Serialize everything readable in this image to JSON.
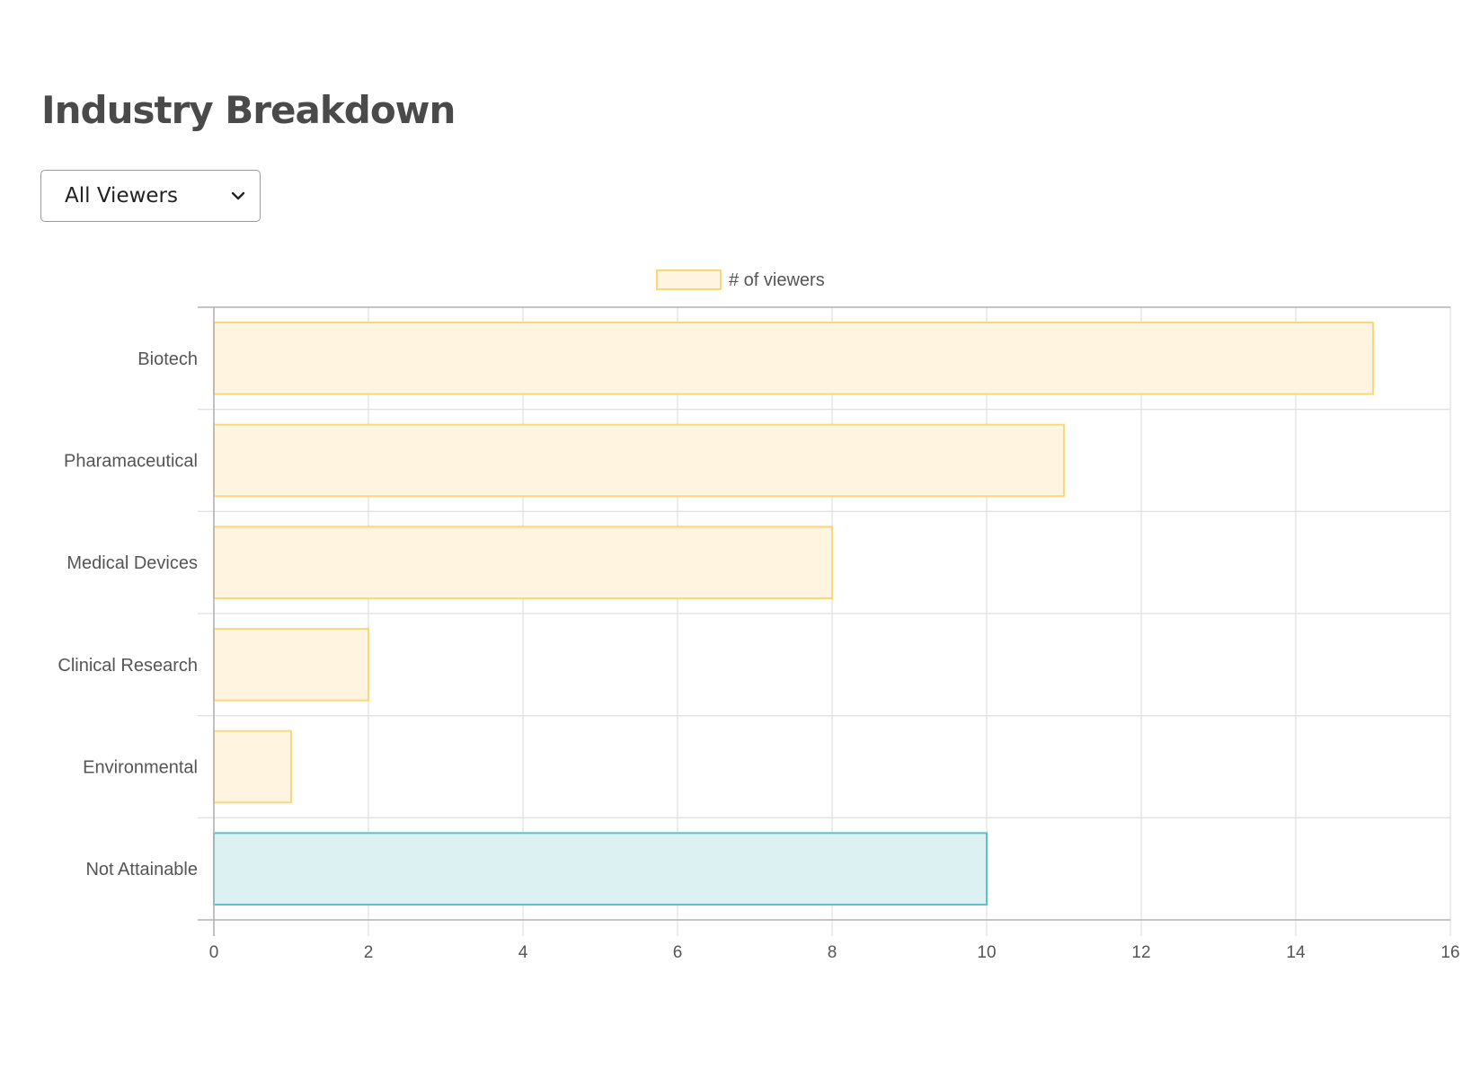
{
  "header": {
    "title": "Industry Breakdown"
  },
  "filter": {
    "selected": "All Viewers",
    "icon": "chevron-down-icon"
  },
  "colors": {
    "bar_fill": "#fff4e0",
    "bar_border": "#fbd77c",
    "highlight_fill": "#dcf1f2",
    "highlight_border": "#5cc2c2",
    "grid": "#e1e1e1",
    "axis": "#b3b3b3",
    "label": "#555555"
  },
  "chart_data": {
    "type": "bar",
    "orientation": "horizontal",
    "categories": [
      "Biotech",
      "Pharamaceutical",
      "Medical Devices",
      "Clinical Research",
      "Environmental",
      "Not Attainable"
    ],
    "series": [
      {
        "name": "# of viewers",
        "values": [
          15,
          11,
          8,
          2,
          1,
          10
        ]
      }
    ],
    "highlighted_category": "Not Attainable",
    "xlim": [
      0,
      16
    ],
    "x_ticks": [
      0,
      2,
      4,
      6,
      8,
      10,
      12,
      14,
      16
    ],
    "grid": true,
    "legend_position": "top"
  }
}
